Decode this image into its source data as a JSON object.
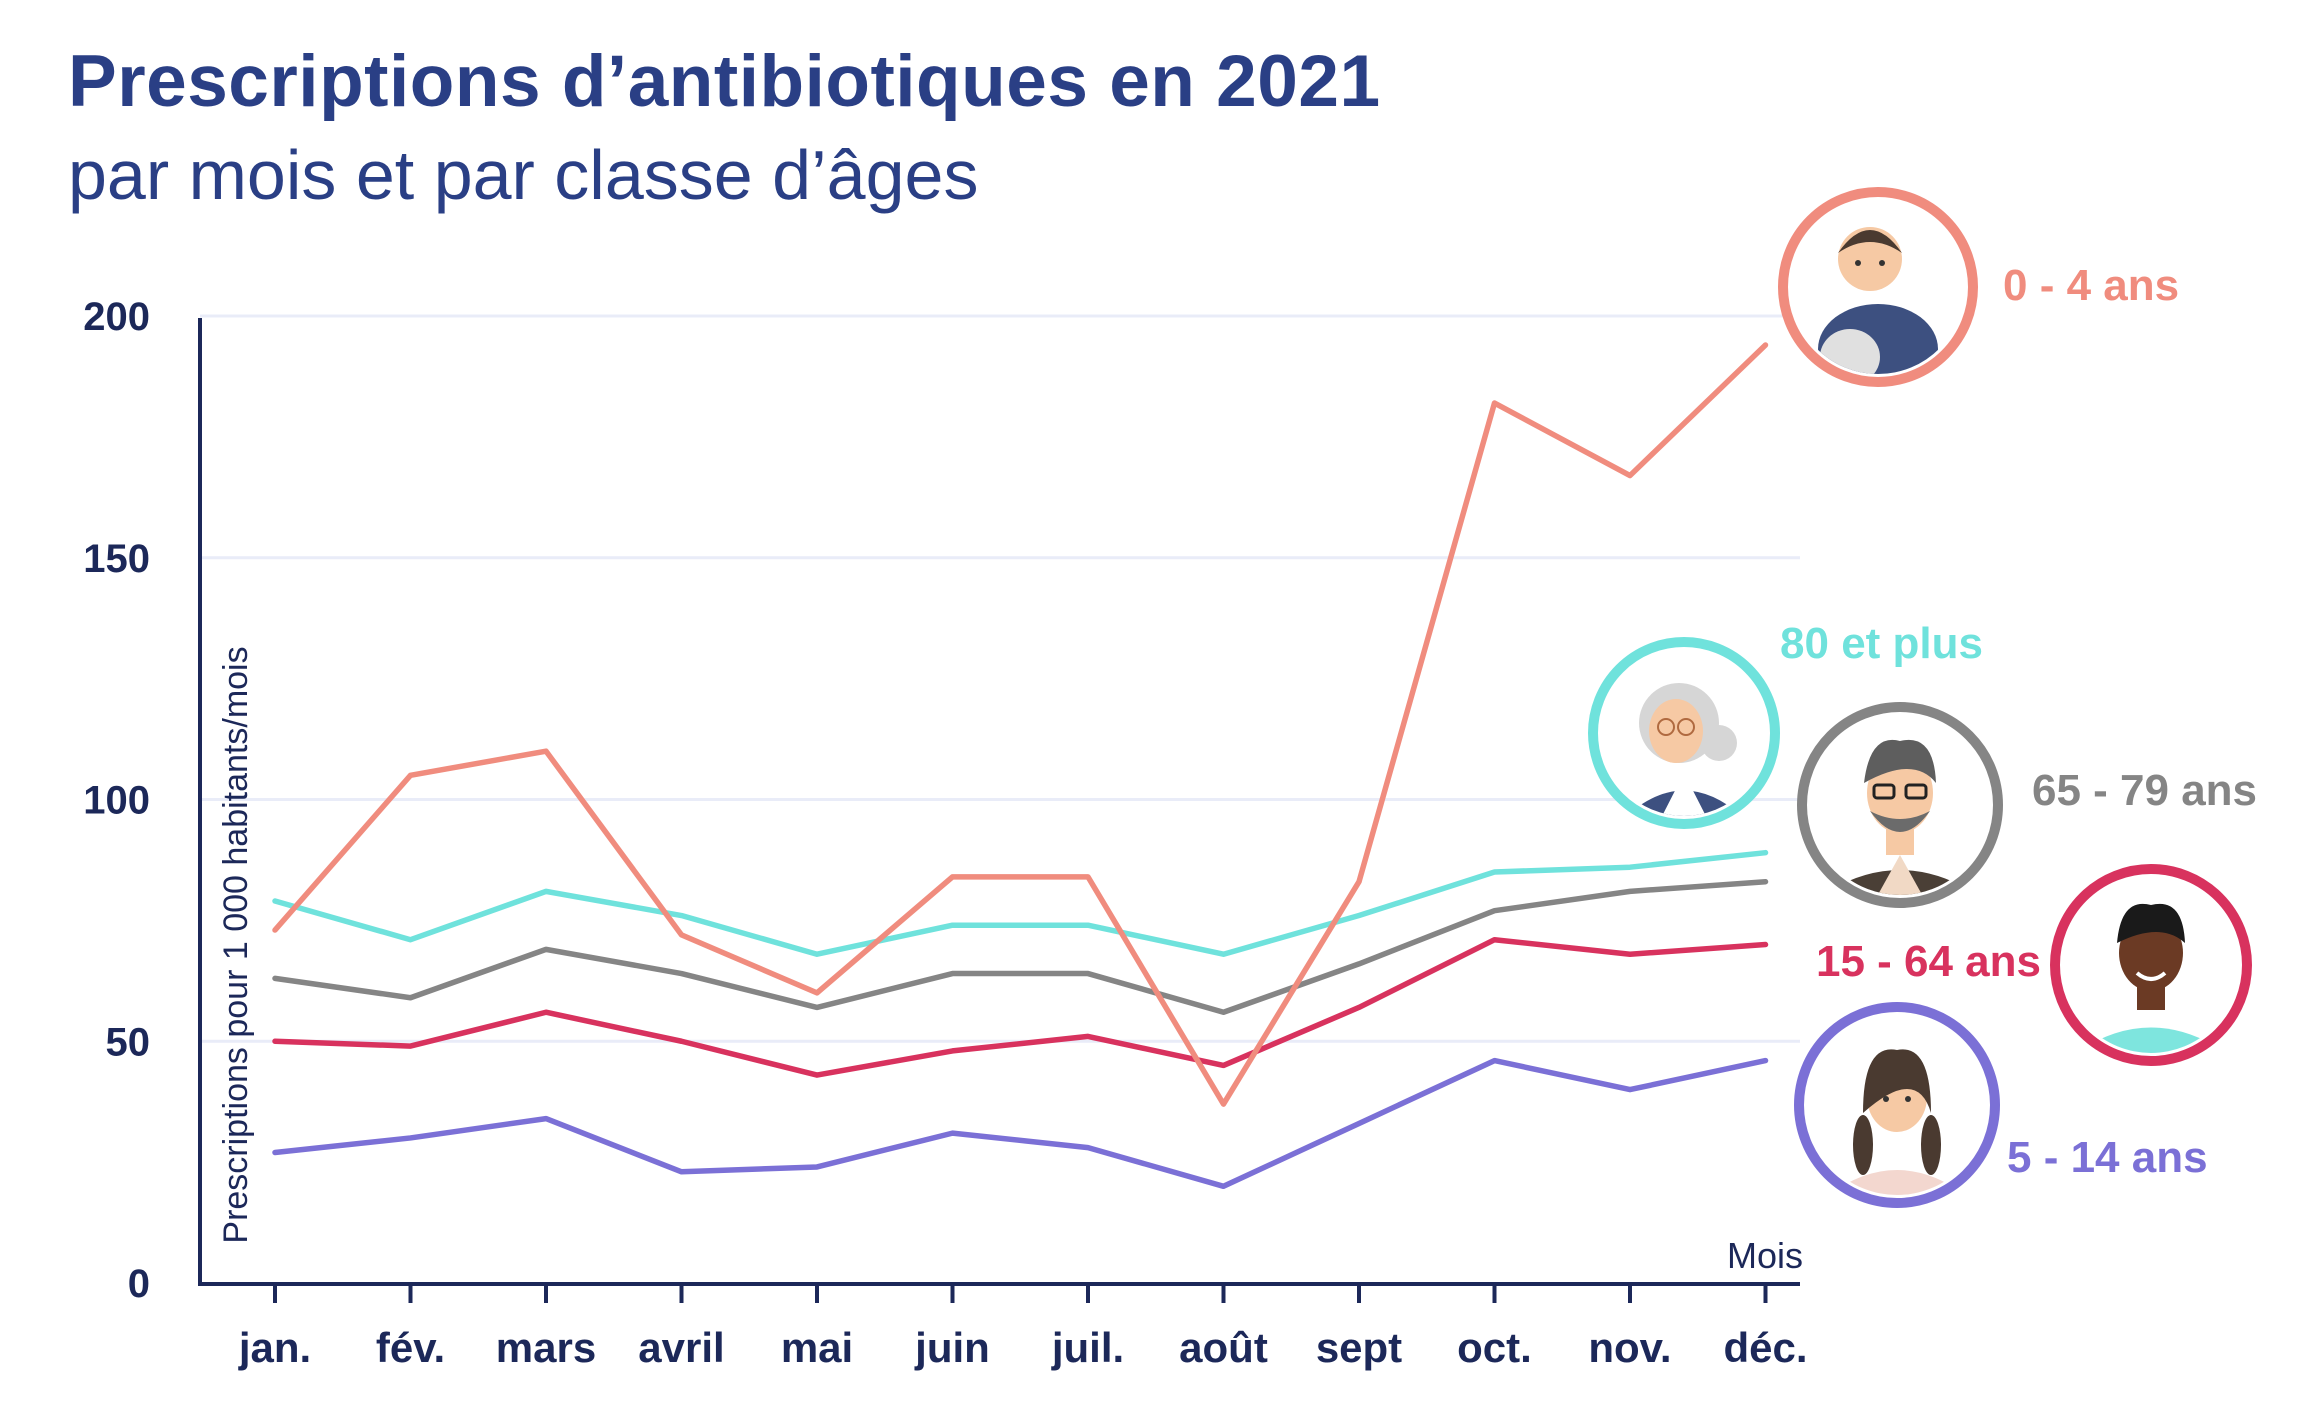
{
  "colors": {
    "0-4": "#f08c7e",
    "5-14": "#7b70d6",
    "15-64": "#d8325e",
    "65-79": "#858585",
    "80plus": "#6fe2dc",
    "axis": "#1c2859",
    "grid": "#e9ecf8",
    "title": "#2a3f85"
  },
  "chart_data": {
    "type": "line",
    "title": "Prescriptions d’antibiotiques en 2021",
    "subtitle": "par mois et par classe d’âges",
    "xlabel": "Mois",
    "ylabel": "Prescriptions pour 1 000 habitants/mois",
    "ylim": [
      0,
      200
    ],
    "yticks": [
      "0",
      "50",
      "100",
      "150",
      "200"
    ],
    "grid": true,
    "legend": "right, labels next to line ends with portrait icons",
    "categories": [
      "jan.",
      "fév.",
      "mars",
      "avril",
      "mai",
      "juin",
      "juil.",
      "août",
      "sept",
      "oct.",
      "nov.",
      "déc."
    ],
    "series": [
      {
        "key": "80plus",
        "name": "80 et plus",
        "values": [
          79,
          71,
          81,
          76,
          68,
          74,
          74,
          68,
          76,
          85,
          86,
          89
        ],
        "icon": "elderly-woman-icon"
      },
      {
        "key": "65-79",
        "name": "65 - 79 ans",
        "values": [
          63,
          59,
          69,
          64,
          57,
          64,
          64,
          56,
          66,
          77,
          81,
          83
        ],
        "icon": "bearded-man-icon"
      },
      {
        "key": "15-64",
        "name": "15 - 64 ans",
        "values": [
          50,
          49,
          56,
          50,
          43,
          48,
          51,
          45,
          57,
          71,
          68,
          70
        ],
        "icon": "young-man-icon"
      },
      {
        "key": "5-14",
        "name": "5 - 14 ans",
        "values": [
          27,
          30,
          34,
          23,
          24,
          31,
          28,
          20,
          33,
          46,
          40,
          46
        ],
        "icon": "girl-icon"
      },
      {
        "key": "0-4",
        "name": "0 - 4 ans",
        "values": [
          73,
          105,
          110,
          72,
          60,
          84,
          84,
          37,
          83,
          182,
          167,
          194
        ],
        "icon": "baby-icon"
      }
    ]
  }
}
